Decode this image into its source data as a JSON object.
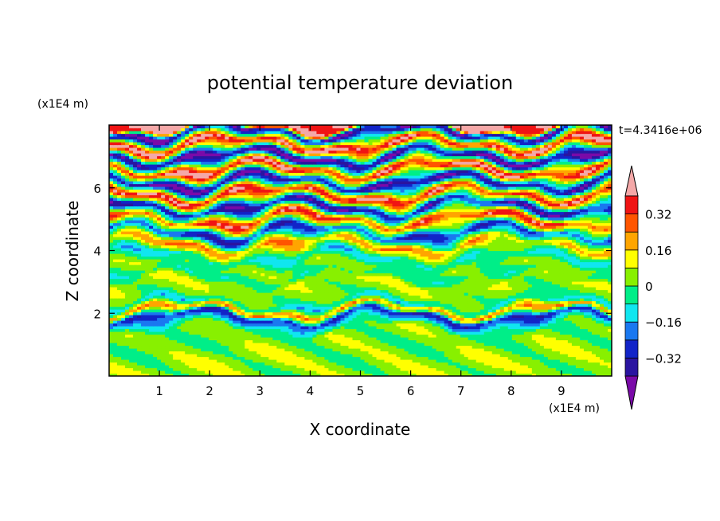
{
  "chart_data": {
    "type": "heatmap",
    "title": "potential temperature deviation",
    "xlabel": "X coordinate",
    "ylabel": "Z coordinate",
    "x_unit": "(x1E4 m)",
    "y_unit": "(x1E4 m)",
    "time_label": "t=4.3416e+06",
    "xlim": [
      0,
      10
    ],
    "ylim": [
      0,
      8
    ],
    "x_ticks": [
      1,
      2,
      3,
      4,
      5,
      6,
      7,
      8,
      9
    ],
    "y_ticks": [
      2,
      4,
      6
    ],
    "colorbar": {
      "levels": [
        -0.4,
        -0.32,
        -0.24,
        -0.16,
        -0.08,
        0,
        0.08,
        0.16,
        0.24,
        0.32,
        0.4
      ],
      "labels": [
        {
          "value": 0.32,
          "text": "0.32"
        },
        {
          "value": 0.16,
          "text": "0.16"
        },
        {
          "value": 0,
          "text": "0"
        },
        {
          "value": -0.16,
          "text": "−0.16"
        },
        {
          "value": -0.32,
          "text": "−0.32"
        }
      ],
      "colors": [
        "#7a0aa8",
        "#2a14a0",
        "#1224c8",
        "#1a78f0",
        "#10e6f0",
        "#00ee88",
        "#88f000",
        "#ffff00",
        "#ffa500",
        "#ff5500",
        "#f01414",
        "#f4a8a8"
      ],
      "extend": "both"
    },
    "layers": [
      {
        "z": 0.0,
        "v": 0.04
      },
      {
        "z": 0.5,
        "v": 0.05
      },
      {
        "z": 1.0,
        "v": 0.03
      },
      {
        "z": 1.5,
        "v": 0.02
      },
      {
        "z": 1.9,
        "v": -0.3
      },
      {
        "z": 2.1,
        "v": 0.25
      },
      {
        "z": 2.3,
        "v": -0.12
      },
      {
        "z": 2.5,
        "v": 0.02
      },
      {
        "z": 3.0,
        "v": 0.06
      },
      {
        "z": 3.2,
        "v": -0.05
      },
      {
        "z": 3.5,
        "v": 0.04
      },
      {
        "z": 3.8,
        "v": -0.1
      },
      {
        "z": 4.2,
        "v": 0.2
      },
      {
        "z": 4.6,
        "v": -0.3
      },
      {
        "z": 5.0,
        "v": 0.35
      },
      {
        "z": 5.4,
        "v": -0.36
      },
      {
        "z": 5.8,
        "v": 0.4
      },
      {
        "z": 6.2,
        "v": -0.42
      },
      {
        "z": 6.6,
        "v": 0.42
      },
      {
        "z": 7.0,
        "v": -0.44
      },
      {
        "z": 7.4,
        "v": 0.45
      },
      {
        "z": 7.8,
        "v": -0.45
      },
      {
        "z": 8.0,
        "v": 0.45
      }
    ]
  }
}
